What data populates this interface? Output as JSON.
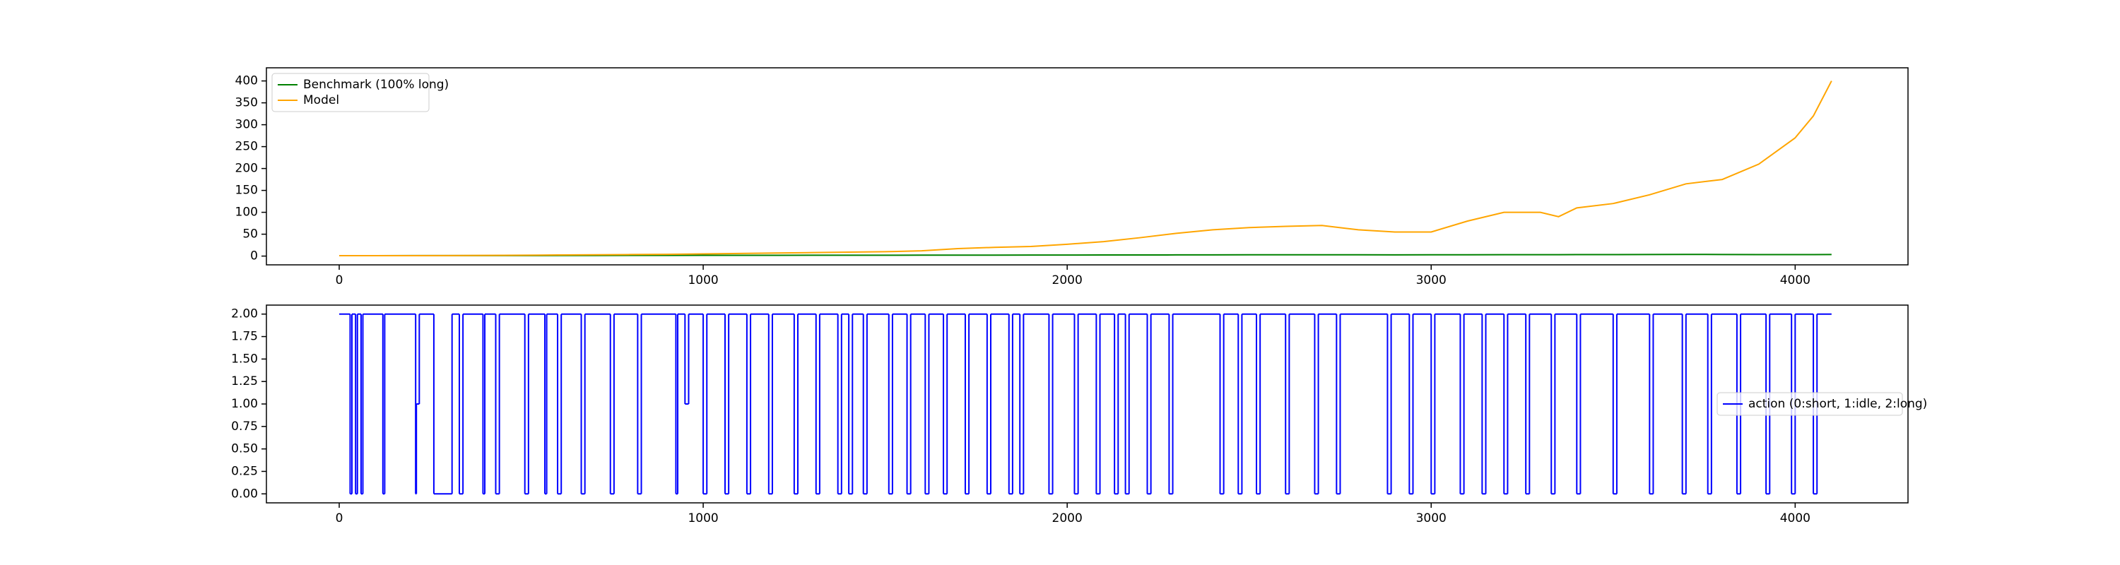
{
  "chart_data": [
    {
      "type": "line",
      "x": [
        0,
        100,
        200,
        300,
        400,
        500,
        600,
        700,
        800,
        900,
        1000,
        1100,
        1200,
        1300,
        1400,
        1500,
        1600,
        1700,
        1800,
        1900,
        2000,
        2100,
        2200,
        2300,
        2400,
        2500,
        2600,
        2700,
        2800,
        2900,
        3000,
        3100,
        3200,
        3300,
        3350,
        3400,
        3500,
        3600,
        3700,
        3800,
        3900,
        4000,
        4050,
        4100
      ],
      "series": [
        {
          "name": "Benchmark (100% long)",
          "color": "#008000",
          "values": [
            1,
            1,
            1.1,
            1.1,
            1.2,
            1.2,
            1.3,
            1.4,
            1.5,
            1.6,
            1.7,
            1.8,
            1.8,
            1.9,
            2,
            2,
            2.1,
            2.2,
            2.2,
            2.3,
            2.4,
            2.5,
            2.6,
            2.7,
            2.8,
            2.9,
            3,
            3,
            2.9,
            2.8,
            2.9,
            3,
            3.1,
            3.2,
            3.1,
            3.3,
            3.4,
            3.6,
            3.8,
            3.6,
            3.4,
            3.3,
            3.4,
            3.5
          ]
        },
        {
          "name": "Model",
          "color": "#ffa500",
          "values": [
            1,
            1,
            1,
            1.2,
            1.5,
            2,
            2.5,
            3,
            3.5,
            4,
            5,
            6,
            7,
            8,
            9,
            10,
            12,
            17,
            20,
            22,
            27,
            33,
            42,
            52,
            60,
            65,
            68,
            70,
            60,
            55,
            55,
            80,
            100,
            100,
            90,
            110,
            120,
            140,
            165,
            175,
            210,
            270,
            320,
            400
          ]
        }
      ],
      "legend": "upper left",
      "xlim": [
        -200,
        4310
      ],
      "ylim": [
        -20,
        430
      ],
      "xticks": [
        0,
        1000,
        2000,
        3000,
        4000
      ],
      "yticks": [
        0,
        50,
        100,
        150,
        200,
        250,
        300,
        350,
        400
      ]
    },
    {
      "type": "step",
      "x": [
        0,
        30,
        35,
        45,
        50,
        60,
        65,
        120,
        125,
        210,
        212,
        220,
        260,
        310,
        330,
        340,
        395,
        400,
        430,
        440,
        510,
        520,
        565,
        570,
        600,
        610,
        665,
        675,
        745,
        755,
        820,
        830,
        925,
        930,
        950,
        960,
        1000,
        1010,
        1060,
        1070,
        1120,
        1130,
        1180,
        1190,
        1250,
        1260,
        1310,
        1320,
        1370,
        1380,
        1400,
        1410,
        1440,
        1450,
        1510,
        1520,
        1560,
        1570,
        1610,
        1620,
        1660,
        1670,
        1720,
        1730,
        1780,
        1790,
        1840,
        1850,
        1870,
        1880,
        1950,
        1960,
        2020,
        2030,
        2080,
        2090,
        2130,
        2140,
        2160,
        2170,
        2220,
        2230,
        2280,
        2290,
        2420,
        2430,
        2470,
        2480,
        2520,
        2530,
        2600,
        2610,
        2680,
        2690,
        2740,
        2750,
        2880,
        2890,
        2940,
        2950,
        3000,
        3010,
        3080,
        3090,
        3140,
        3150,
        3200,
        3210,
        3260,
        3270,
        3330,
        3340,
        3400,
        3410,
        3500,
        3510,
        3600,
        3610,
        3690,
        3700,
        3760,
        3770,
        3840,
        3850,
        3920,
        3930,
        3990,
        4000,
        4050,
        4060,
        4100
      ],
      "series": [
        {
          "name": "action (0:short, 1:idle, 2:long)",
          "color": "#0000ff",
          "values": [
            2,
            0,
            2,
            0,
            2,
            0,
            2,
            0,
            2,
            0,
            1,
            2,
            0,
            2,
            0,
            2,
            0,
            2,
            0,
            2,
            0,
            2,
            0,
            2,
            0,
            2,
            0,
            2,
            0,
            2,
            0,
            2,
            0,
            2,
            1,
            2,
            0,
            2,
            0,
            2,
            0,
            2,
            0,
            2,
            0,
            2,
            0,
            2,
            0,
            2,
            0,
            2,
            0,
            2,
            0,
            2,
            0,
            2,
            0,
            2,
            0,
            2,
            0,
            2,
            0,
            2,
            0,
            2,
            0,
            2,
            0,
            2,
            0,
            2,
            0,
            2,
            0,
            2,
            0,
            2,
            0,
            2,
            0,
            2,
            0,
            2,
            0,
            2,
            0,
            2,
            0,
            2,
            0,
            2,
            0,
            2,
            0,
            2,
            0,
            2,
            0,
            2,
            0,
            2,
            0,
            2,
            0,
            2,
            0,
            2,
            0,
            2,
            0,
            2,
            0,
            2,
            0,
            2,
            0,
            2,
            0,
            2,
            0,
            2,
            0,
            2,
            0,
            2,
            0,
            2,
            2
          ]
        }
      ],
      "legend": "center right",
      "xlim": [
        -200,
        4310
      ],
      "ylim": [
        -0.1,
        2.1
      ],
      "xticks": [
        0,
        1000,
        2000,
        3000,
        4000
      ],
      "yticks": [
        {
          "value": 0,
          "label": "0.00"
        },
        {
          "value": 0.25,
          "label": "0.25"
        },
        {
          "value": 0.5,
          "label": "0.50"
        },
        {
          "value": 0.75,
          "label": "0.75"
        },
        {
          "value": 1,
          "label": "1.00"
        },
        {
          "value": 1.25,
          "label": "1.25"
        },
        {
          "value": 1.5,
          "label": "1.50"
        },
        {
          "value": 1.75,
          "label": "1.75"
        },
        {
          "value": 2,
          "label": "2.00"
        }
      ]
    }
  ]
}
